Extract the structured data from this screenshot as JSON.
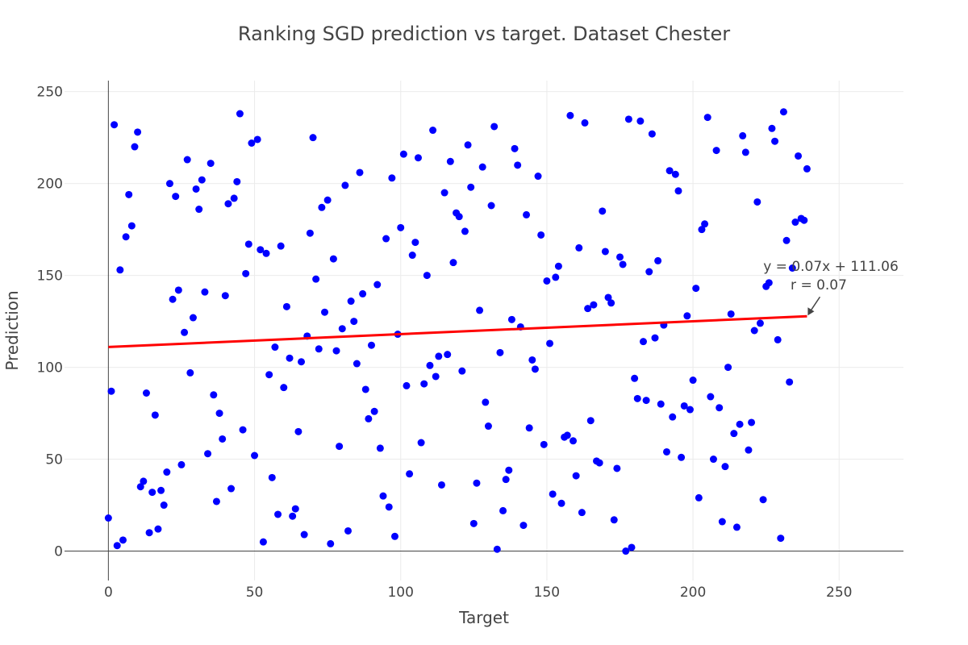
{
  "chart_data": {
    "type": "scatter",
    "title": "Ranking SGD prediction vs target. Dataset Chester",
    "xlabel": "Target",
    "ylabel": "Prediction",
    "xlim": [
      -15,
      272
    ],
    "ylim": [
      -16,
      256
    ],
    "x_ticks": [
      0,
      50,
      100,
      150,
      200,
      250
    ],
    "y_ticks": [
      0,
      50,
      100,
      150,
      200,
      250
    ],
    "x_tick_labels": [
      "0",
      "50",
      "100",
      "150",
      "200",
      "250"
    ],
    "y_tick_labels": [
      "0",
      "50",
      "100",
      "150",
      "200",
      "250"
    ],
    "grid": true,
    "legend": "none",
    "point_color": "#0000ff",
    "line_color": "#ff0000",
    "points": [
      [
        0,
        18
      ],
      [
        1,
        87
      ],
      [
        2,
        232
      ],
      [
        3,
        3
      ],
      [
        4,
        153
      ],
      [
        5,
        6
      ],
      [
        6,
        171
      ],
      [
        7,
        194
      ],
      [
        8,
        177
      ],
      [
        9,
        220
      ],
      [
        10,
        228
      ],
      [
        11,
        35
      ],
      [
        12,
        38
      ],
      [
        13,
        86
      ],
      [
        14,
        10
      ],
      [
        15,
        32
      ],
      [
        16,
        74
      ],
      [
        17,
        12
      ],
      [
        18,
        33
      ],
      [
        19,
        25
      ],
      [
        20,
        43
      ],
      [
        21,
        200
      ],
      [
        22,
        137
      ],
      [
        23,
        193
      ],
      [
        24,
        142
      ],
      [
        25,
        47
      ],
      [
        26,
        119
      ],
      [
        27,
        213
      ],
      [
        28,
        97
      ],
      [
        29,
        127
      ],
      [
        30,
        197
      ],
      [
        31,
        186
      ],
      [
        32,
        202
      ],
      [
        33,
        141
      ],
      [
        34,
        53
      ],
      [
        35,
        211
      ],
      [
        36,
        85
      ],
      [
        37,
        27
      ],
      [
        38,
        75
      ],
      [
        39,
        61
      ],
      [
        40,
        139
      ],
      [
        41,
        189
      ],
      [
        42,
        34
      ],
      [
        43,
        192
      ],
      [
        44,
        201
      ],
      [
        45,
        238
      ],
      [
        46,
        66
      ],
      [
        47,
        151
      ],
      [
        48,
        167
      ],
      [
        49,
        222
      ],
      [
        50,
        52
      ],
      [
        51,
        224
      ],
      [
        52,
        164
      ],
      [
        53,
        5
      ],
      [
        54,
        162
      ],
      [
        55,
        96
      ],
      [
        56,
        40
      ],
      [
        57,
        111
      ],
      [
        58,
        20
      ],
      [
        59,
        166
      ],
      [
        60,
        89
      ],
      [
        61,
        133
      ],
      [
        62,
        105
      ],
      [
        63,
        19
      ],
      [
        64,
        23
      ],
      [
        65,
        65
      ],
      [
        66,
        103
      ],
      [
        67,
        9
      ],
      [
        68,
        117
      ],
      [
        69,
        173
      ],
      [
        70,
        225
      ],
      [
        71,
        148
      ],
      [
        72,
        110
      ],
      [
        73,
        187
      ],
      [
        74,
        130
      ],
      [
        75,
        191
      ],
      [
        76,
        4
      ],
      [
        77,
        159
      ],
      [
        78,
        109
      ],
      [
        79,
        57
      ],
      [
        80,
        121
      ],
      [
        81,
        199
      ],
      [
        82,
        11
      ],
      [
        83,
        136
      ],
      [
        84,
        125
      ],
      [
        85,
        102
      ],
      [
        86,
        206
      ],
      [
        87,
        140
      ],
      [
        88,
        88
      ],
      [
        89,
        72
      ],
      [
        90,
        112
      ],
      [
        91,
        76
      ],
      [
        92,
        145
      ],
      [
        93,
        56
      ],
      [
        94,
        30
      ],
      [
        95,
        170
      ],
      [
        96,
        24
      ],
      [
        97,
        203
      ],
      [
        98,
        8
      ],
      [
        99,
        118
      ],
      [
        100,
        176
      ],
      [
        101,
        216
      ],
      [
        102,
        90
      ],
      [
        103,
        42
      ],
      [
        104,
        161
      ],
      [
        105,
        168
      ],
      [
        106,
        214
      ],
      [
        107,
        59
      ],
      [
        108,
        91
      ],
      [
        109,
        150
      ],
      [
        110,
        101
      ],
      [
        111,
        229
      ],
      [
        112,
        95
      ],
      [
        113,
        106
      ],
      [
        114,
        36
      ],
      [
        115,
        195
      ],
      [
        116,
        107
      ],
      [
        117,
        212
      ],
      [
        118,
        157
      ],
      [
        119,
        184
      ],
      [
        120,
        182
      ],
      [
        121,
        98
      ],
      [
        122,
        174
      ],
      [
        123,
        221
      ],
      [
        124,
        198
      ],
      [
        125,
        15
      ],
      [
        126,
        37
      ],
      [
        127,
        131
      ],
      [
        128,
        209
      ],
      [
        129,
        81
      ],
      [
        130,
        68
      ],
      [
        131,
        188
      ],
      [
        132,
        231
      ],
      [
        133,
        1
      ],
      [
        134,
        108
      ],
      [
        135,
        22
      ],
      [
        136,
        39
      ],
      [
        137,
        44
      ],
      [
        138,
        126
      ],
      [
        139,
        219
      ],
      [
        140,
        210
      ],
      [
        141,
        122
      ],
      [
        142,
        14
      ],
      [
        143,
        183
      ],
      [
        144,
        67
      ],
      [
        145,
        104
      ],
      [
        146,
        99
      ],
      [
        147,
        204
      ],
      [
        148,
        172
      ],
      [
        149,
        58
      ],
      [
        150,
        147
      ],
      [
        151,
        113
      ],
      [
        152,
        31
      ],
      [
        153,
        149
      ],
      [
        154,
        155
      ],
      [
        155,
        26
      ],
      [
        156,
        62
      ],
      [
        157,
        63
      ],
      [
        158,
        237
      ],
      [
        159,
        60
      ],
      [
        160,
        41
      ],
      [
        161,
        165
      ],
      [
        162,
        21
      ],
      [
        163,
        233
      ],
      [
        164,
        132
      ],
      [
        165,
        71
      ],
      [
        166,
        134
      ],
      [
        167,
        49
      ],
      [
        168,
        48
      ],
      [
        169,
        185
      ],
      [
        170,
        163
      ],
      [
        171,
        138
      ],
      [
        172,
        135
      ],
      [
        173,
        17
      ],
      [
        174,
        45
      ],
      [
        175,
        160
      ],
      [
        176,
        156
      ],
      [
        177,
        0
      ],
      [
        178,
        235
      ],
      [
        179,
        2
      ],
      [
        180,
        94
      ],
      [
        181,
        83
      ],
      [
        182,
        234
      ],
      [
        183,
        114
      ],
      [
        184,
        82
      ],
      [
        185,
        152
      ],
      [
        186,
        227
      ],
      [
        187,
        116
      ],
      [
        188,
        158
      ],
      [
        189,
        80
      ],
      [
        190,
        123
      ],
      [
        191,
        54
      ],
      [
        192,
        207
      ],
      [
        193,
        73
      ],
      [
        194,
        205
      ],
      [
        195,
        196
      ],
      [
        196,
        51
      ],
      [
        197,
        79
      ],
      [
        198,
        128
      ],
      [
        199,
        77
      ],
      [
        200,
        93
      ],
      [
        201,
        143
      ],
      [
        202,
        29
      ],
      [
        203,
        175
      ],
      [
        204,
        178
      ],
      [
        205,
        236
      ],
      [
        206,
        84
      ],
      [
        207,
        50
      ],
      [
        208,
        218
      ],
      [
        209,
        78
      ],
      [
        210,
        16
      ],
      [
        211,
        46
      ],
      [
        212,
        100
      ],
      [
        213,
        129
      ],
      [
        214,
        64
      ],
      [
        215,
        13
      ],
      [
        216,
        69
      ],
      [
        217,
        226
      ],
      [
        218,
        217
      ],
      [
        219,
        55
      ],
      [
        220,
        70
      ],
      [
        221,
        120
      ],
      [
        222,
        190
      ],
      [
        223,
        124
      ],
      [
        224,
        28
      ],
      [
        225,
        144
      ],
      [
        226,
        146
      ],
      [
        227,
        230
      ],
      [
        228,
        223
      ],
      [
        229,
        115
      ],
      [
        230,
        7
      ],
      [
        231,
        239
      ],
      [
        232,
        169
      ],
      [
        233,
        92
      ],
      [
        234,
        154
      ],
      [
        235,
        179
      ],
      [
        236,
        215
      ],
      [
        237,
        181
      ],
      [
        238,
        180
      ],
      [
        239,
        208
      ]
    ],
    "fit_line": {
      "x": [
        0,
        239
      ],
      "y": [
        111.06,
        127.79
      ],
      "equation": "y = 0.07x + 111.06",
      "r": "r = 0.07"
    }
  }
}
